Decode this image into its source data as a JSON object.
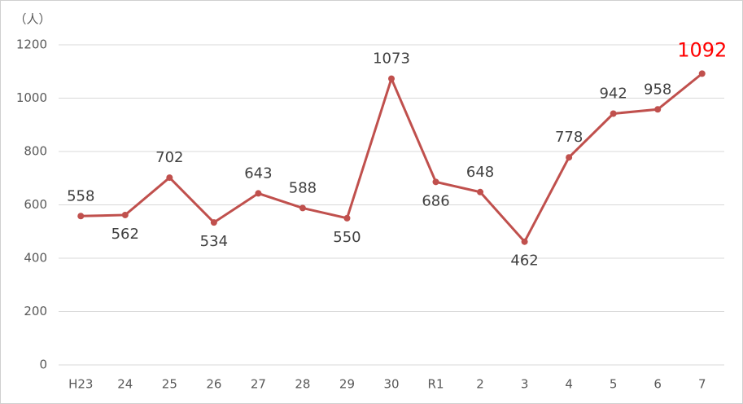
{
  "chart_data": {
    "type": "line",
    "y_unit": "（人）",
    "categories": [
      "H23",
      "24",
      "25",
      "26",
      "27",
      "28",
      "29",
      "30",
      "R1",
      "2",
      "3",
      "4",
      "5",
      "6",
      "7"
    ],
    "series": [
      {
        "color": "#c0504d",
        "values": [
          558,
          562,
          702,
          534,
          643,
          588,
          550,
          1073,
          686,
          648,
          462,
          778,
          942,
          958,
          1092
        ]
      }
    ],
    "highlight_color": "#ff0000",
    "ylim": [
      0,
      1200
    ],
    "yticks": [
      0,
      200,
      400,
      600,
      800,
      1000,
      1200
    ],
    "grid": true
  }
}
